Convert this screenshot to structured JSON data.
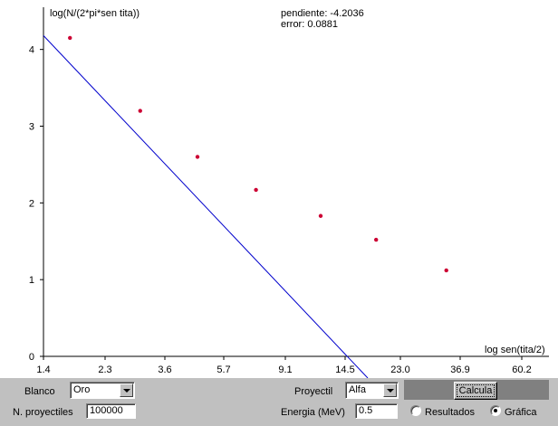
{
  "chart_data": {
    "type": "scatter",
    "ylabel": "log(N/(2*pi*sen tita))",
    "xlabel": "log sen(tita/2)",
    "y_ticks": [
      "0",
      "1",
      "2",
      "3",
      "4"
    ],
    "x_tick_labels": [
      "1.4",
      "2.3",
      "3.6",
      "5.7",
      "9.1",
      "14.5",
      "23.0",
      "36.9",
      "60.2"
    ],
    "ylim": [
      0,
      4.55
    ],
    "stats": {
      "slope_text": "pendiente: -4.2036",
      "error_text": "error: 0.0881"
    },
    "points_axis_units": [
      {
        "x": 1.43,
        "y": 4.15
      },
      {
        "x": 2.57,
        "y": 3.2
      },
      {
        "x": 3.5,
        "y": 2.6
      },
      {
        "x": 4.45,
        "y": 2.17
      },
      {
        "x": 5.5,
        "y": 1.83
      },
      {
        "x": 6.4,
        "y": 1.52
      },
      {
        "x": 7.54,
        "y": 1.12
      }
    ],
    "fit_line": {
      "slope": -4.2036,
      "intercept": 4.18
    },
    "point_color": "#cc0033",
    "line_color": "#0000cc"
  },
  "controls": {
    "blanco_label": "Blanco",
    "blanco_value": "Oro",
    "proyectil_label": "Proyectil",
    "proyectil_value": "Alfa",
    "calcula_label": "Calcula",
    "nproy_label": "N. proyectiles",
    "nproy_value": "100000",
    "energia_label": "Energia (MeV)",
    "energia_value": "0.5",
    "resultados_label": "Resultados",
    "grafica_label": "Gráfica",
    "selected_view": "Gráfica"
  }
}
